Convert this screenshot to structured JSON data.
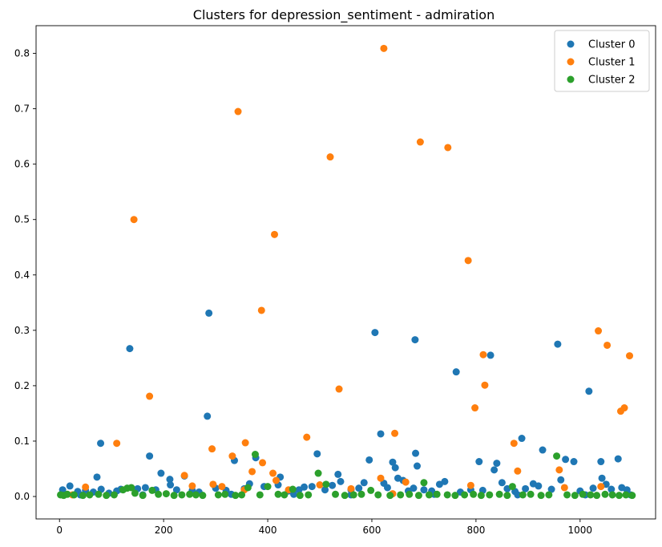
{
  "chart_data": {
    "type": "scatter",
    "title": "Clusters for depression_sentiment - admiration",
    "xlabel": "",
    "ylabel": "",
    "xlim": [
      -45,
      1145
    ],
    "ylim": [
      -0.0405,
      0.85
    ],
    "x_ticks": [
      0,
      200,
      400,
      600,
      800,
      1000
    ],
    "y_ticks": [
      0.0,
      0.1,
      0.2,
      0.3,
      0.4,
      0.5,
      0.6,
      0.7,
      0.8
    ],
    "grid": false,
    "legend_position": "top-right",
    "legend": [
      "Cluster 0",
      "Cluster 1",
      "Cluster 2"
    ],
    "series": [
      {
        "name": "Cluster 0",
        "color": "#1f77b4",
        "points": [
          [
            6,
            0.012
          ],
          [
            20,
            0.019
          ],
          [
            35,
            0.009
          ],
          [
            50,
            0.011
          ],
          [
            65,
            0.008
          ],
          [
            72,
            0.035
          ],
          [
            79,
            0.096
          ],
          [
            80,
            0.013
          ],
          [
            95,
            0.006
          ],
          [
            110,
            0.01
          ],
          [
            118,
            0.013
          ],
          [
            135,
            0.267
          ],
          [
            150,
            0.014
          ],
          [
            165,
            0.016
          ],
          [
            173,
            0.073
          ],
          [
            185,
            0.012
          ],
          [
            195,
            0.042
          ],
          [
            212,
            0.031
          ],
          [
            213,
            0.021
          ],
          [
            225,
            0.012
          ],
          [
            240,
            0.037
          ],
          [
            255,
            0.011
          ],
          [
            268,
            0.008
          ],
          [
            284,
            0.145
          ],
          [
            287,
            0.331
          ],
          [
            300,
            0.015
          ],
          [
            320,
            0.011
          ],
          [
            336,
            0.065
          ],
          [
            355,
            0.014
          ],
          [
            365,
            0.023
          ],
          [
            377,
            0.07
          ],
          [
            393,
            0.018
          ],
          [
            420,
            0.021
          ],
          [
            424,
            0.035
          ],
          [
            440,
            0.01
          ],
          [
            460,
            0.012
          ],
          [
            470,
            0.017
          ],
          [
            485,
            0.018
          ],
          [
            495,
            0.077
          ],
          [
            510,
            0.012
          ],
          [
            524,
            0.02
          ],
          [
            535,
            0.04
          ],
          [
            540,
            0.027
          ],
          [
            560,
            0.012
          ],
          [
            575,
            0.015
          ],
          [
            585,
            0.025
          ],
          [
            595,
            0.066
          ],
          [
            606,
            0.296
          ],
          [
            617,
            0.113
          ],
          [
            623,
            0.024
          ],
          [
            630,
            0.016
          ],
          [
            640,
            0.062
          ],
          [
            645,
            0.052
          ],
          [
            650,
            0.033
          ],
          [
            660,
            0.029
          ],
          [
            670,
            0.01
          ],
          [
            680,
            0.015
          ],
          [
            683,
            0.283
          ],
          [
            684,
            0.078
          ],
          [
            687,
            0.055
          ],
          [
            700,
            0.012
          ],
          [
            715,
            0.01
          ],
          [
            730,
            0.022
          ],
          [
            740,
            0.027
          ],
          [
            762,
            0.225
          ],
          [
            770,
            0.008
          ],
          [
            790,
            0.012
          ],
          [
            806,
            0.063
          ],
          [
            813,
            0.011
          ],
          [
            828,
            0.255
          ],
          [
            835,
            0.048
          ],
          [
            840,
            0.06
          ],
          [
            850,
            0.025
          ],
          [
            860,
            0.014
          ],
          [
            875,
            0.009
          ],
          [
            888,
            0.105
          ],
          [
            895,
            0.014
          ],
          [
            910,
            0.023
          ],
          [
            920,
            0.019
          ],
          [
            928,
            0.084
          ],
          [
            945,
            0.013
          ],
          [
            957,
            0.275
          ],
          [
            963,
            0.03
          ],
          [
            972,
            0.067
          ],
          [
            988,
            0.063
          ],
          [
            1000,
            0.01
          ],
          [
            1017,
            0.19
          ],
          [
            1025,
            0.015
          ],
          [
            1040,
            0.063
          ],
          [
            1042,
            0.033
          ],
          [
            1050,
            0.022
          ],
          [
            1060,
            0.013
          ],
          [
            1073,
            0.068
          ],
          [
            1080,
            0.016
          ],
          [
            1090,
            0.012
          ],
          [
            1097,
            0.003
          ],
          [
            40,
            0.003
          ],
          [
            160,
            0.003
          ],
          [
            330,
            0.004
          ],
          [
            450,
            0.004
          ],
          [
            560,
            0.003
          ],
          [
            720,
            0.004
          ],
          [
            880,
            0.003
          ],
          [
            1010,
            0.003
          ]
        ]
      },
      {
        "name": "Cluster 1",
        "color": "#ff7f0e",
        "points": [
          [
            25,
            0.003
          ],
          [
            50,
            0.017
          ],
          [
            110,
            0.096
          ],
          [
            143,
            0.5
          ],
          [
            173,
            0.181
          ],
          [
            240,
            0.038
          ],
          [
            255,
            0.019
          ],
          [
            293,
            0.086
          ],
          [
            295,
            0.022
          ],
          [
            312,
            0.018
          ],
          [
            332,
            0.073
          ],
          [
            343,
            0.695
          ],
          [
            355,
            0.012
          ],
          [
            357,
            0.097
          ],
          [
            370,
            0.045
          ],
          [
            388,
            0.336
          ],
          [
            390,
            0.061
          ],
          [
            410,
            0.042
          ],
          [
            413,
            0.473
          ],
          [
            416,
            0.029
          ],
          [
            440,
            0.012
          ],
          [
            475,
            0.107
          ],
          [
            500,
            0.021
          ],
          [
            520,
            0.613
          ],
          [
            537,
            0.194
          ],
          [
            560,
            0.014
          ],
          [
            617,
            0.033
          ],
          [
            623,
            0.809
          ],
          [
            640,
            0.005
          ],
          [
            644,
            0.114
          ],
          [
            665,
            0.026
          ],
          [
            693,
            0.64
          ],
          [
            746,
            0.63
          ],
          [
            785,
            0.426
          ],
          [
            790,
            0.02
          ],
          [
            798,
            0.16
          ],
          [
            814,
            0.256
          ],
          [
            817,
            0.201
          ],
          [
            873,
            0.096
          ],
          [
            880,
            0.046
          ],
          [
            960,
            0.048
          ],
          [
            970,
            0.016
          ],
          [
            1035,
            0.299
          ],
          [
            1040,
            0.018
          ],
          [
            1052,
            0.273
          ],
          [
            1078,
            0.154
          ],
          [
            1085,
            0.16
          ],
          [
            1095,
            0.254
          ]
        ]
      },
      {
        "name": "Cluster 2",
        "color": "#2ca02c",
        "points": [
          [
            2,
            0.003
          ],
          [
            8,
            0.002
          ],
          [
            15,
            0.004
          ],
          [
            28,
            0.003
          ],
          [
            45,
            0.002
          ],
          [
            58,
            0.003
          ],
          [
            75,
            0.004
          ],
          [
            90,
            0.002
          ],
          [
            105,
            0.003
          ],
          [
            122,
            0.012
          ],
          [
            130,
            0.015
          ],
          [
            138,
            0.016
          ],
          [
            145,
            0.006
          ],
          [
            160,
            0.002
          ],
          [
            178,
            0.011
          ],
          [
            190,
            0.004
          ],
          [
            205,
            0.005
          ],
          [
            220,
            0.002
          ],
          [
            235,
            0.003
          ],
          [
            250,
            0.004
          ],
          [
            262,
            0.003
          ],
          [
            275,
            0.002
          ],
          [
            305,
            0.003
          ],
          [
            318,
            0.004
          ],
          [
            338,
            0.002
          ],
          [
            350,
            0.003
          ],
          [
            362,
            0.016
          ],
          [
            376,
            0.076
          ],
          [
            385,
            0.003
          ],
          [
            400,
            0.018
          ],
          [
            420,
            0.004
          ],
          [
            432,
            0.003
          ],
          [
            448,
            0.013
          ],
          [
            462,
            0.002
          ],
          [
            478,
            0.003
          ],
          [
            497,
            0.042
          ],
          [
            512,
            0.022
          ],
          [
            530,
            0.004
          ],
          [
            548,
            0.002
          ],
          [
            565,
            0.003
          ],
          [
            580,
            0.004
          ],
          [
            598,
            0.011
          ],
          [
            612,
            0.003
          ],
          [
            635,
            0.002
          ],
          [
            655,
            0.003
          ],
          [
            672,
            0.004
          ],
          [
            690,
            0.002
          ],
          [
            700,
            0.025
          ],
          [
            710,
            0.003
          ],
          [
            725,
            0.004
          ],
          [
            745,
            0.003
          ],
          [
            760,
            0.002
          ],
          [
            778,
            0.003
          ],
          [
            795,
            0.004
          ],
          [
            810,
            0.002
          ],
          [
            826,
            0.003
          ],
          [
            845,
            0.004
          ],
          [
            860,
            0.002
          ],
          [
            870,
            0.018
          ],
          [
            890,
            0.003
          ],
          [
            905,
            0.004
          ],
          [
            925,
            0.002
          ],
          [
            940,
            0.003
          ],
          [
            955,
            0.073
          ],
          [
            975,
            0.003
          ],
          [
            990,
            0.002
          ],
          [
            1005,
            0.004
          ],
          [
            1020,
            0.003
          ],
          [
            1032,
            0.002
          ],
          [
            1048,
            0.004
          ],
          [
            1062,
            0.003
          ],
          [
            1075,
            0.002
          ],
          [
            1088,
            0.003
          ],
          [
            1100,
            0.002
          ]
        ]
      }
    ]
  }
}
